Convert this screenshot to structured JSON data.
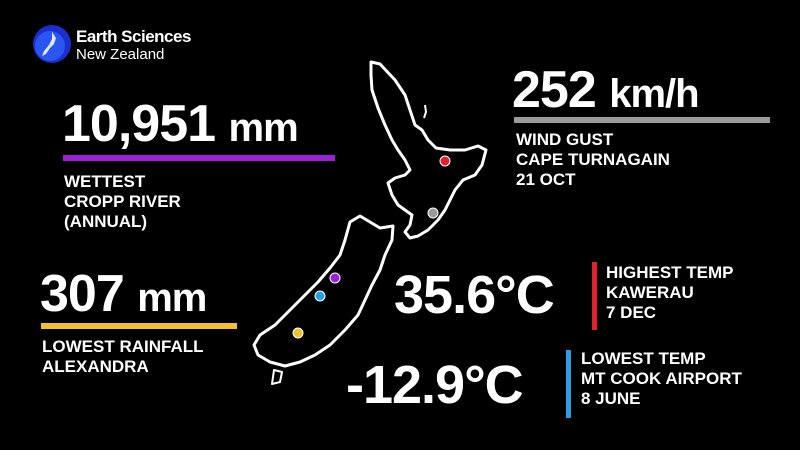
{
  "logo": {
    "line1": "Earth Sciences",
    "line2": "New Zealand"
  },
  "records": {
    "wettest": {
      "value": "10,951",
      "unit": "mm",
      "lines": [
        "WETTEST",
        "CROPP RIVER",
        "(ANNUAL)"
      ],
      "color": "#9b1fd6"
    },
    "lowest_rainfall": {
      "value": "307",
      "unit": "mm",
      "lines": [
        "LOWEST RAINFALL",
        "ALEXANDRA"
      ],
      "color": "#f5c030"
    },
    "wind": {
      "value": "252",
      "unit": "km/h",
      "lines": [
        "WIND GUST",
        "CAPE TURNAGAIN",
        "21 OCT"
      ],
      "color": "#9a9a9a"
    },
    "highest_temp": {
      "value": "35.6°C",
      "lines": [
        "HIGHEST TEMP",
        "KAWERAU",
        "7 DEC"
      ],
      "color": "#e0222b"
    },
    "lowest_temp": {
      "value": "-12.9°C",
      "lines": [
        "LOWEST TEMP",
        "MT COOK AIRPORT",
        "8 JUNE"
      ],
      "color": "#2a9ee0"
    }
  }
}
